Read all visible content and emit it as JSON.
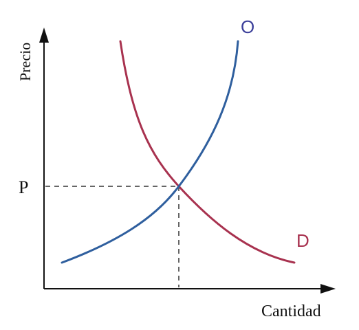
{
  "diagram": {
    "y_axis_label": "Precio",
    "x_axis_label": "Cantidad",
    "price_marker": "P",
    "supply_label": "O",
    "demand_label": "D",
    "colors": {
      "axis": "#111111",
      "supply": "#2f5f9e",
      "demand": "#a8324f",
      "guide": "#333333",
      "supply_label": "#3b3f9a",
      "demand_label": "#a8324f"
    }
  }
}
